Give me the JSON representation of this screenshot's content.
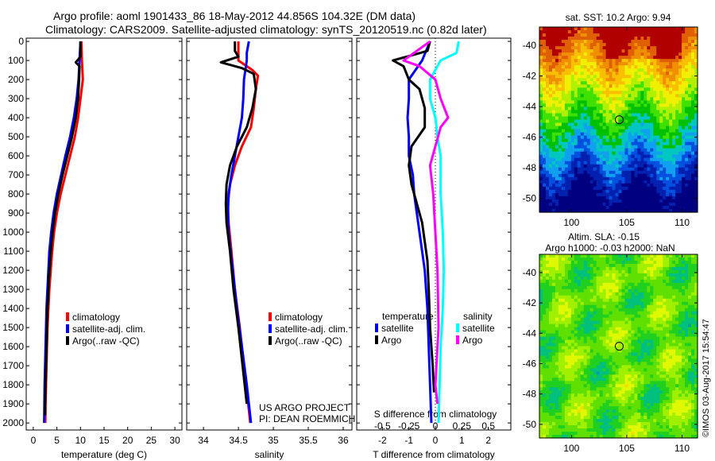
{
  "title_line1": "Argo profile: aoml 1901433_86 18-May-2012 44.856S 104.32E (DM data)",
  "title_line2": "Climatology: CARS2009. Satellite-adjusted climatology: synTS_20120519.nc (0.82d later)",
  "credit": "US ARGO PROJECT",
  "pi": "PI: DEAN ROEMMICH",
  "stamp": "©IMOS 03-Aug-2017 15:54:47",
  "colors": {
    "clim": "#ff0000",
    "sat": "#0000ff",
    "argo": "#000000",
    "sal_sat": "#00ffff",
    "sal_argo": "#ff00ff"
  },
  "chart_data": [
    {
      "type": "line",
      "name": "temperature",
      "xlabel": "temperature (deg C)",
      "ylabel": "",
      "xlim": [
        -1.5,
        31.5
      ],
      "ylim": [
        2037,
        -17
      ],
      "xticks": [
        0,
        5,
        10,
        15,
        20,
        25,
        30
      ],
      "yticks": [
        0,
        100,
        200,
        300,
        400,
        500,
        600,
        700,
        800,
        900,
        1000,
        1100,
        1200,
        1300,
        1400,
        1500,
        1600,
        1700,
        1800,
        1900,
        2000
      ],
      "legend": [
        "climatology",
        "satellite-adj. clim.",
        "Argo(..raw -QC)"
      ],
      "series": [
        {
          "name": "climatology",
          "color": "#ff0000",
          "points": [
            [
              10.2,
              0
            ],
            [
              10.3,
              100
            ],
            [
              10.5,
              200
            ],
            [
              10,
              300
            ],
            [
              9.5,
              400
            ],
            [
              8.8,
              500
            ],
            [
              7.8,
              600
            ],
            [
              6.8,
              700
            ],
            [
              5.8,
              800
            ],
            [
              5,
              900
            ],
            [
              4.4,
              1000
            ],
            [
              4,
              1100
            ],
            [
              3.7,
              1200
            ],
            [
              3.4,
              1300
            ],
            [
              3.2,
              1400
            ],
            [
              3,
              1500
            ],
            [
              2.9,
              1600
            ],
            [
              2.8,
              1700
            ],
            [
              2.7,
              1800
            ],
            [
              2.6,
              1900
            ],
            [
              2.55,
              2000
            ]
          ]
        },
        {
          "name": "satellite-adj. clim.",
          "color": "#0000ff",
          "points": [
            [
              10,
              0
            ],
            [
              9.8,
              100
            ],
            [
              9.6,
              200
            ],
            [
              9.2,
              300
            ],
            [
              8.6,
              400
            ],
            [
              7.8,
              500
            ],
            [
              6.8,
              600
            ],
            [
              5.9,
              700
            ],
            [
              5,
              800
            ],
            [
              4.3,
              900
            ],
            [
              3.8,
              1000
            ],
            [
              3.4,
              1100
            ],
            [
              3.2,
              1200
            ],
            [
              3,
              1300
            ],
            [
              2.8,
              1400
            ],
            [
              2.7,
              1500
            ],
            [
              2.6,
              1600
            ],
            [
              2.5,
              1700
            ],
            [
              2.4,
              1800
            ],
            [
              2.35,
              1900
            ],
            [
              2.3,
              2000
            ]
          ]
        },
        {
          "name": "Argo(..raw -QC)",
          "color": "#000000",
          "points": [
            [
              10,
              0
            ],
            [
              10,
              80
            ],
            [
              9,
              110
            ],
            [
              9.8,
              130
            ],
            [
              9.7,
              200
            ],
            [
              9.5,
              300
            ],
            [
              9,
              400
            ],
            [
              8.2,
              500
            ],
            [
              7.2,
              600
            ],
            [
              6.2,
              700
            ],
            [
              5.3,
              800
            ],
            [
              4.6,
              900
            ],
            [
              4.1,
              1000
            ],
            [
              3.7,
              1100
            ],
            [
              3.4,
              1200
            ],
            [
              3.2,
              1300
            ],
            [
              3,
              1400
            ],
            [
              2.9,
              1500
            ],
            [
              2.8,
              1600
            ],
            [
              2.7,
              1700
            ],
            [
              2.6,
              1800
            ],
            [
              2.5,
              1900
            ],
            [
              2.5,
              1960
            ]
          ]
        }
      ]
    },
    {
      "type": "line",
      "name": "salinity",
      "xlabel": "salinity",
      "xlim": [
        33.76,
        36.125
      ],
      "ylim": [
        2037,
        -17
      ],
      "xticks": [
        34,
        34.5,
        35,
        35.5,
        36
      ],
      "legend": [
        "climatology",
        "satellite-adj. clim.",
        "Argo(..raw -QC)"
      ],
      "series": [
        {
          "name": "climatology",
          "color": "#ff0000",
          "points": [
            [
              34.5,
              0
            ],
            [
              34.5,
              100
            ],
            [
              34.7,
              150
            ],
            [
              34.78,
              180
            ],
            [
              34.75,
              250
            ],
            [
              34.72,
              350
            ],
            [
              34.68,
              450
            ],
            [
              34.55,
              550
            ],
            [
              34.45,
              650
            ],
            [
              34.38,
              750
            ],
            [
              34.35,
              850
            ],
            [
              34.36,
              950
            ],
            [
              34.4,
              1100
            ],
            [
              34.45,
              1300
            ],
            [
              34.52,
              1500
            ],
            [
              34.58,
              1700
            ],
            [
              34.64,
              1900
            ],
            [
              34.67,
              2000
            ]
          ]
        },
        {
          "name": "satellite-adj. clim.",
          "color": "#0000ff",
          "points": [
            [
              34.65,
              0
            ],
            [
              34.62,
              60
            ],
            [
              34.62,
              100
            ],
            [
              34.58,
              200
            ],
            [
              34.57,
              300
            ],
            [
              34.55,
              400
            ],
            [
              34.5,
              500
            ],
            [
              34.45,
              600
            ],
            [
              34.4,
              700
            ],
            [
              34.36,
              800
            ],
            [
              34.35,
              900
            ],
            [
              34.36,
              1000
            ],
            [
              34.42,
              1200
            ],
            [
              34.48,
              1400
            ],
            [
              34.55,
              1600
            ],
            [
              34.62,
              1800
            ],
            [
              34.68,
              2000
            ]
          ]
        },
        {
          "name": "Argo(..raw -QC)",
          "color": "#000000",
          "points": [
            [
              34.45,
              0
            ],
            [
              34.45,
              50
            ],
            [
              34.5,
              80
            ],
            [
              34.25,
              110
            ],
            [
              34.55,
              140
            ],
            [
              34.72,
              170
            ],
            [
              34.75,
              250
            ],
            [
              34.7,
              350
            ],
            [
              34.62,
              450
            ],
            [
              34.48,
              550
            ],
            [
              34.38,
              650
            ],
            [
              34.33,
              750
            ],
            [
              34.32,
              850
            ],
            [
              34.33,
              950
            ],
            [
              34.38,
              1100
            ],
            [
              34.43,
              1300
            ],
            [
              34.5,
              1500
            ],
            [
              34.56,
              1700
            ],
            [
              34.62,
              1900
            ]
          ]
        }
      ]
    },
    {
      "type": "line",
      "name": "difference",
      "xlabel": "T difference from climatology",
      "x2label": "S difference from climatology",
      "xlim": [
        -2.97,
        2.85
      ],
      "ylim": [
        2037,
        -17
      ],
      "xticks": [
        -2,
        -1,
        0,
        1,
        2
      ],
      "x2ticks": [
        "-0.5",
        "-0.25",
        "0",
        "0.25",
        "0.5"
      ],
      "legend_temperature_title": "temperature",
      "legend_salinity_title": "salinity",
      "legend": [
        "satellite",
        "Argo",
        "satellite",
        "Argo"
      ],
      "series": [
        {
          "name": "T satellite",
          "color": "#0000ff",
          "scale": 1,
          "points": [
            [
              -0.2,
              0
            ],
            [
              -0.5,
              100
            ],
            [
              -1,
              200
            ],
            [
              -1,
              300
            ],
            [
              -1.05,
              400
            ],
            [
              -1,
              500
            ],
            [
              -1,
              600
            ],
            [
              -0.85,
              700
            ],
            [
              -0.8,
              800
            ],
            [
              -0.7,
              900
            ],
            [
              -0.6,
              1000
            ],
            [
              -0.5,
              1100
            ],
            [
              -0.4,
              1200
            ],
            [
              -0.35,
              1300
            ],
            [
              -0.3,
              1400
            ],
            [
              -0.25,
              1600
            ],
            [
              -0.2,
              1800
            ],
            [
              -0.15,
              2000
            ]
          ]
        },
        {
          "name": "T Argo",
          "color": "#000000",
          "scale": 1,
          "points": [
            [
              -0.2,
              0
            ],
            [
              -0.3,
              50
            ],
            [
              -1.6,
              100
            ],
            [
              -1.2,
              130
            ],
            [
              -1,
              200
            ],
            [
              -0.6,
              250
            ],
            [
              -0.4,
              350
            ],
            [
              -0.4,
              450
            ],
            [
              -0.9,
              550
            ],
            [
              -1,
              650
            ],
            [
              -0.9,
              750
            ],
            [
              -0.7,
              850
            ],
            [
              -0.5,
              950
            ],
            [
              -0.4,
              1050
            ],
            [
              -0.3,
              1150
            ],
            [
              -0.25,
              1300
            ],
            [
              -0.2,
              1500
            ],
            [
              -0.1,
              1700
            ],
            [
              -0.05,
              1840
            ]
          ]
        },
        {
          "name": "S satellite",
          "color": "#00ffff",
          "scale": 4,
          "points": [
            [
              0.22,
              0
            ],
            [
              0.2,
              60
            ],
            [
              0.05,
              100
            ],
            [
              -0.05,
              200
            ],
            [
              -0.05,
              300
            ],
            [
              0,
              400
            ],
            [
              0.02,
              500
            ],
            [
              0.05,
              600
            ],
            [
              0.05,
              800
            ],
            [
              0.07,
              1000
            ],
            [
              0.08,
              1200
            ],
            [
              0.07,
              1400
            ],
            [
              0.05,
              1600
            ],
            [
              0.04,
              1800
            ],
            [
              0.03,
              2000
            ]
          ]
        },
        {
          "name": "S Argo",
          "color": "#ff00ff",
          "scale": 4,
          "points": [
            [
              -0.05,
              0
            ],
            [
              -0.3,
              100
            ],
            [
              -0.15,
              130
            ],
            [
              0,
              200
            ],
            [
              0.05,
              300
            ],
            [
              0.12,
              400
            ],
            [
              0.05,
              450
            ],
            [
              0,
              550
            ],
            [
              -0.05,
              650
            ],
            [
              -0.02,
              800
            ],
            [
              0,
              1000
            ],
            [
              0.02,
              1200
            ],
            [
              0.03,
              1500
            ],
            [
              0,
              1800
            ],
            [
              0.02,
              1900
            ]
          ]
        }
      ]
    },
    {
      "type": "heatmap",
      "name": "sst-map",
      "title": "sat. SST: 10.2 Argo: 9.94",
      "xlim": [
        97.1,
        111.4
      ],
      "ylim": [
        -50.9,
        -38.8
      ],
      "xticks": [
        100,
        105,
        110
      ],
      "yticks": [
        -40,
        -42,
        -44,
        -46,
        -48,
        -50
      ],
      "marker": [
        104.32,
        -44.856
      ]
    },
    {
      "type": "heatmap",
      "name": "sla-map",
      "title1": "Altim. SLA: -0.15",
      "title2": "Argo h1000: -0.03 h2000: NaN",
      "xlim": [
        97.1,
        111.4
      ],
      "ylim": [
        -50.9,
        -38.8
      ],
      "xticks": [
        100,
        105,
        110
      ],
      "yticks": [
        -40,
        -42,
        -44,
        -46,
        -48,
        -50
      ],
      "marker": [
        104.32,
        -44.856
      ]
    }
  ]
}
